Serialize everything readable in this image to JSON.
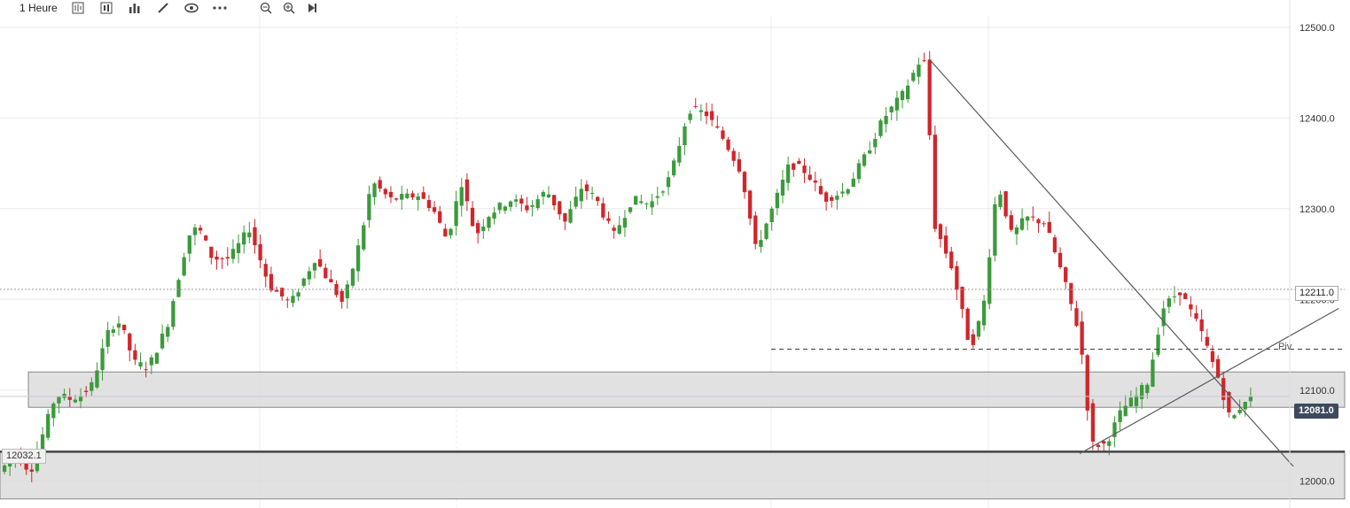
{
  "toolbar": {
    "timeframe": "1 Heure",
    "icons": [
      "candle-type-icon",
      "bar-type-icon",
      "indicators-icon",
      "draw-icon",
      "eye-icon",
      "more-icon",
      "zoom-out-icon",
      "zoom-in-icon",
      "go-to-end-icon"
    ]
  },
  "chart_data": {
    "type": "candlestick",
    "ylim": [
      11970,
      12530
    ],
    "y_ticks": [
      "12500.0",
      "12400.0",
      "12300.0",
      "12200.0",
      "12100.0",
      "12000.0"
    ],
    "y_tick_values": [
      12500,
      12400,
      12300,
      12200,
      12100,
      12000
    ],
    "candle_count": 230,
    "anchors": [
      [
        0,
        12010
      ],
      [
        12,
        12030
      ],
      [
        22,
        12010
      ],
      [
        40,
        12095
      ],
      [
        50,
        12090
      ],
      [
        58,
        12095
      ],
      [
        65,
        12105
      ],
      [
        78,
        12170
      ],
      [
        85,
        12175
      ],
      [
        95,
        12130
      ],
      [
        105,
        12125
      ],
      [
        118,
        12170
      ],
      [
        133,
        12270
      ],
      [
        140,
        12280
      ],
      [
        150,
        12245
      ],
      [
        162,
        12245
      ],
      [
        176,
        12278
      ],
      [
        190,
        12215
      ],
      [
        205,
        12195
      ],
      [
        222,
        12245
      ],
      [
        242,
        12195
      ],
      [
        255,
        12272
      ],
      [
        262,
        12330
      ],
      [
        275,
        12310
      ],
      [
        295,
        12315
      ],
      [
        305,
        12300
      ],
      [
        315,
        12265
      ],
      [
        325,
        12330
      ],
      [
        335,
        12270
      ],
      [
        345,
        12295
      ],
      [
        360,
        12310
      ],
      [
        372,
        12300
      ],
      [
        385,
        12320
      ],
      [
        398,
        12285
      ],
      [
        410,
        12325
      ],
      [
        420,
        12310
      ],
      [
        432,
        12270
      ],
      [
        445,
        12310
      ],
      [
        458,
        12305
      ],
      [
        472,
        12335
      ],
      [
        485,
        12410
      ],
      [
        497,
        12405
      ],
      [
        510,
        12375
      ],
      [
        522,
        12340
      ],
      [
        532,
        12255
      ],
      [
        545,
        12305
      ],
      [
        556,
        12350
      ],
      [
        568,
        12340
      ],
      [
        580,
        12310
      ],
      [
        595,
        12320
      ],
      [
        608,
        12355
      ],
      [
        622,
        12400
      ],
      [
        635,
        12425
      ],
      [
        647,
        12462
      ],
      [
        652,
        12460
      ],
      [
        657,
        12285
      ],
      [
        670,
        12235
      ],
      [
        683,
        12145
      ],
      [
        692,
        12190
      ],
      [
        702,
        12330
      ],
      [
        712,
        12270
      ],
      [
        722,
        12290
      ],
      [
        735,
        12285
      ],
      [
        748,
        12225
      ],
      [
        760,
        12160
      ],
      [
        768,
        12040
      ],
      [
        778,
        12040
      ],
      [
        790,
        12080
      ],
      [
        798,
        12090
      ],
      [
        808,
        12110
      ],
      [
        818,
        12190
      ],
      [
        830,
        12210
      ],
      [
        845,
        12165
      ],
      [
        858,
        12110
      ],
      [
        866,
        12065
      ],
      [
        876,
        12090
      ]
    ],
    "levels": {
      "dotted_level": 12211.0,
      "pivot": 12145.0,
      "last_price": 12081.0,
      "left_marker": 12032.1,
      "support_line": 12032.1
    },
    "zones": [
      {
        "from": 12081,
        "to": 12120
      },
      {
        "from": 11980,
        "to": 12032
      }
    ],
    "trendlines": [
      {
        "from": [
          652,
          12465
        ],
        "to": [
          908,
          12016
        ]
      },
      {
        "from": [
          758,
          12030
        ],
        "to": [
          940,
          12190
        ]
      }
    ],
    "pivot_label": "Piv",
    "right_price_tag": "12211.0",
    "last_price_tag": "12081.0",
    "left_price_tag": "12032.1",
    "colors": {
      "up": "#3c9a3c",
      "down": "#d0262b",
      "grid": "#ececec",
      "zone_fill": "#dcdcdc",
      "zone_stroke": "#888888",
      "line": "#5a5a5a"
    }
  }
}
